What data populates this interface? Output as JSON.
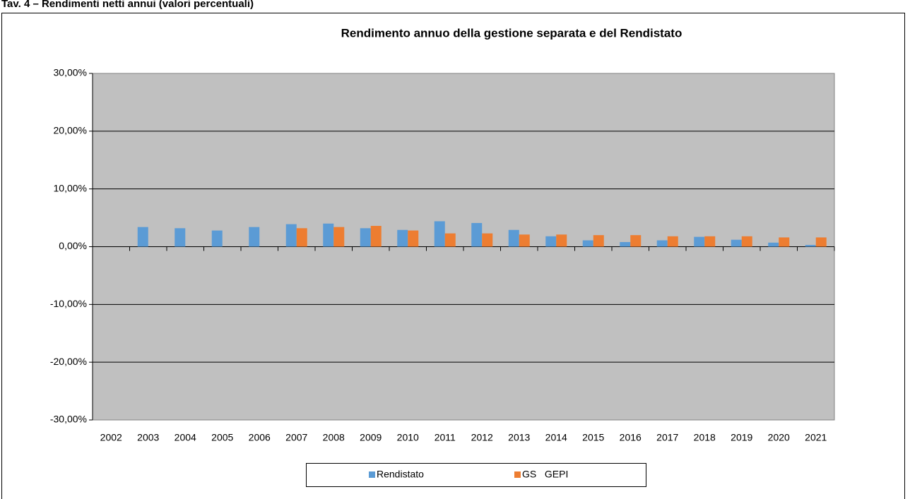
{
  "heading": "Tav. 4 – Rendimenti netti annui (valori percentuali)",
  "chart_data": {
    "type": "bar",
    "title": "Rendimento annuo della gestione separata e del Rendistato",
    "categories": [
      "2002",
      "2003",
      "2004",
      "2005",
      "2006",
      "2007",
      "2008",
      "2009",
      "2010",
      "2011",
      "2012",
      "2013",
      "2014",
      "2015",
      "2016",
      "2017",
      "2018",
      "2019",
      "2020",
      "2021"
    ],
    "series": [
      {
        "name": "Rendistato",
        "color": "#5b9bd5",
        "values": [
          null,
          3.4,
          3.2,
          2.8,
          3.4,
          3.9,
          4.0,
          3.2,
          2.9,
          4.4,
          4.1,
          2.9,
          1.8,
          1.1,
          0.8,
          1.1,
          1.7,
          1.2,
          0.7,
          0.3
        ]
      },
      {
        "name": "GS   GEPI",
        "color": "#ed7d31",
        "values": [
          null,
          null,
          null,
          null,
          null,
          3.2,
          3.4,
          3.6,
          2.8,
          2.3,
          2.3,
          2.1,
          2.1,
          2.0,
          2.0,
          1.8,
          1.8,
          1.8,
          1.6,
          1.6
        ]
      }
    ],
    "ylim": [
      -30,
      30
    ],
    "yticks": [
      {
        "value": -30,
        "label": "-30,00%"
      },
      {
        "value": -20,
        "label": "-20,00%"
      },
      {
        "value": -10,
        "label": "-10,00%"
      },
      {
        "value": 0,
        "label": "0,00%"
      },
      {
        "value": 10,
        "label": "10,00%"
      },
      {
        "value": 20,
        "label": "20,00%"
      },
      {
        "value": 30,
        "label": "30,00%"
      }
    ],
    "grid": true,
    "legend": "bottom",
    "plot_background": "#c0c0c0"
  }
}
